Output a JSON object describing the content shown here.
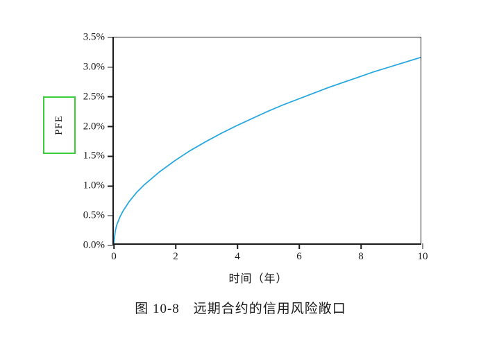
{
  "figure": {
    "caption": "图 10-8　远期合约的信用风险敞口"
  },
  "chart_data": {
    "type": "line",
    "title": "",
    "xlabel": "时间（年）",
    "ylabel": "PFE",
    "xlim": [
      0,
      10
    ],
    "ylim": [
      0,
      3.5
    ],
    "xticks": [
      0,
      2,
      4,
      6,
      8,
      10
    ],
    "xtick_labels": [
      "0",
      "2",
      "4",
      "6",
      "8",
      "10"
    ],
    "yticks": [
      0,
      0.5,
      1.0,
      1.5,
      2.0,
      2.5,
      3.0,
      3.5
    ],
    "ytick_labels": [
      "0.0%",
      "0.5%",
      "1.0%",
      "1.5%",
      "2.0%",
      "2.5%",
      "3.0%",
      "3.5%"
    ],
    "grid": false,
    "legend": null,
    "line_color": "#29A8E0",
    "ylabel_box_border_color": "#3BCE3B",
    "axis_color": "#1a1a1a",
    "series": [
      {
        "name": "PFE",
        "x": [
          0,
          0.05,
          0.1,
          0.2,
          0.3,
          0.5,
          0.75,
          1,
          1.5,
          2,
          2.5,
          3,
          3.5,
          4,
          4.5,
          5,
          5.5,
          6,
          6.5,
          7,
          7.5,
          8,
          8.5,
          9,
          9.5,
          10
        ],
        "y": [
          0,
          0.22,
          0.32,
          0.45,
          0.55,
          0.71,
          0.87,
          1.0,
          1.22,
          1.41,
          1.58,
          1.73,
          1.87,
          2.0,
          2.12,
          2.24,
          2.35,
          2.45,
          2.55,
          2.65,
          2.74,
          2.83,
          2.92,
          3.0,
          3.08,
          3.16
        ]
      }
    ]
  }
}
